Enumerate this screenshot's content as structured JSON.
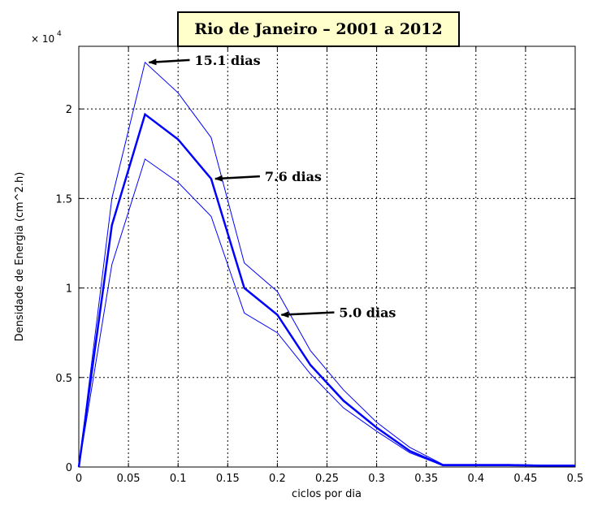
{
  "chart_data": {
    "type": "line",
    "title": "Rio de Janeiro – 2001 a 2012",
    "xlabel": "ciclos por dia",
    "ylabel": "Densidade de Energia (cm^2.h)",
    "y_multiplier_label": "× 10",
    "y_multiplier_exponent": "4",
    "xlim": [
      0,
      0.5
    ],
    "ylim": [
      0,
      23500
    ],
    "grid": true,
    "x_ticks": [
      "0",
      "0.05",
      "0.1",
      "0.15",
      "0.2",
      "0.25",
      "0.3",
      "0.35",
      "0.4",
      "0.45",
      "0.5"
    ],
    "y_ticks": [
      "0",
      "0.5",
      "1",
      "1.5",
      "2"
    ],
    "x": [
      0,
      0.0333,
      0.0667,
      0.1,
      0.1333,
      0.1667,
      0.2,
      0.2333,
      0.2667,
      0.3,
      0.3333,
      0.3667,
      0.4,
      0.4333,
      0.4667,
      0.5
    ],
    "series": [
      {
        "role": "upper",
        "width": 1,
        "values": [
          0,
          15000,
          22600,
          20900,
          18400,
          11400,
          9800,
          6500,
          4300,
          2500,
          1100,
          150,
          150,
          150,
          100,
          100
        ]
      },
      {
        "role": "central",
        "width": 2.5,
        "values": [
          0,
          13500,
          19700,
          18300,
          16100,
          10000,
          8500,
          5700,
          3700,
          2200,
          900,
          100,
          100,
          100,
          80,
          80
        ]
      },
      {
        "role": "lower",
        "width": 1,
        "values": [
          0,
          11300,
          17200,
          15900,
          14000,
          8600,
          7500,
          5200,
          3300,
          2000,
          800,
          80,
          80,
          80,
          60,
          60
        ]
      }
    ],
    "color": "#0000ff",
    "annotations": [
      {
        "text": "15.1 dias",
        "x": 0.0667,
        "y": 22600
      },
      {
        "text": "7.6 dias",
        "x": 0.1333,
        "y": 16100
      },
      {
        "text": "5.0 dias",
        "x": 0.2,
        "y": 8500
      }
    ]
  }
}
